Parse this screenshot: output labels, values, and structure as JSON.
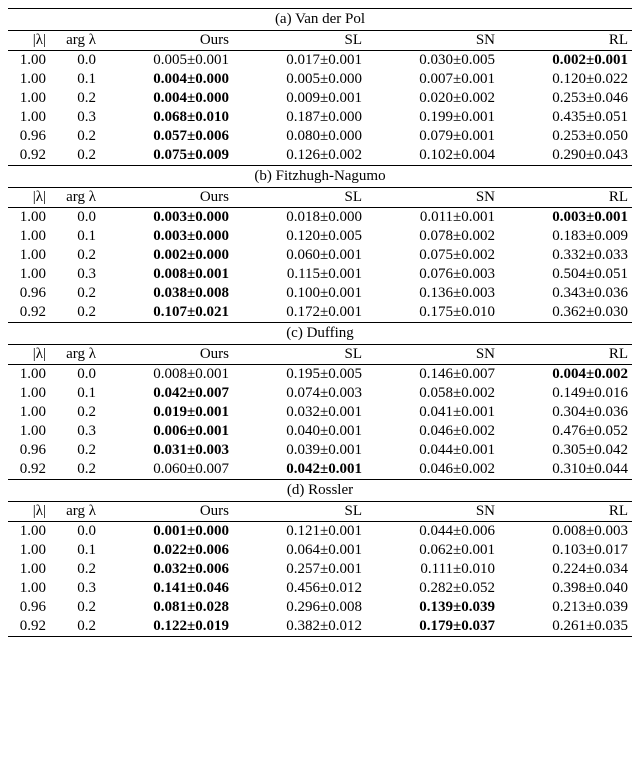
{
  "columns": [
    "|λ|",
    "arg λ",
    "Ours",
    "SL",
    "SN",
    "RL"
  ],
  "panels": [
    {
      "title": "(a) Van der Pol",
      "rows": [
        {
          "abs": "1.00",
          "arg": "0.0",
          "ours": {
            "v": "0.005",
            "e": "0.001",
            "b": false
          },
          "sl": {
            "v": "0.017",
            "e": "0.001",
            "b": false
          },
          "sn": {
            "v": "0.030",
            "e": "0.005",
            "b": false
          },
          "rl": {
            "v": "0.002",
            "e": "0.001",
            "b": true
          }
        },
        {
          "abs": "1.00",
          "arg": "0.1",
          "ours": {
            "v": "0.004",
            "e": "0.000",
            "b": true
          },
          "sl": {
            "v": "0.005",
            "e": "0.000",
            "b": false
          },
          "sn": {
            "v": "0.007",
            "e": "0.001",
            "b": false
          },
          "rl": {
            "v": "0.120",
            "e": "0.022",
            "b": false
          }
        },
        {
          "abs": "1.00",
          "arg": "0.2",
          "ours": {
            "v": "0.004",
            "e": "0.000",
            "b": true
          },
          "sl": {
            "v": "0.009",
            "e": "0.001",
            "b": false
          },
          "sn": {
            "v": "0.020",
            "e": "0.002",
            "b": false
          },
          "rl": {
            "v": "0.253",
            "e": "0.046",
            "b": false
          }
        },
        {
          "abs": "1.00",
          "arg": "0.3",
          "ours": {
            "v": "0.068",
            "e": "0.010",
            "b": true
          },
          "sl": {
            "v": "0.187",
            "e": "0.000",
            "b": false
          },
          "sn": {
            "v": "0.199",
            "e": "0.001",
            "b": false
          },
          "rl": {
            "v": "0.435",
            "e": "0.051",
            "b": false
          }
        },
        {
          "abs": "0.96",
          "arg": "0.2",
          "ours": {
            "v": "0.057",
            "e": "0.006",
            "b": true
          },
          "sl": {
            "v": "0.080",
            "e": "0.000",
            "b": false
          },
          "sn": {
            "v": "0.079",
            "e": "0.001",
            "b": false
          },
          "rl": {
            "v": "0.253",
            "e": "0.050",
            "b": false
          }
        },
        {
          "abs": "0.92",
          "arg": "0.2",
          "ours": {
            "v": "0.075",
            "e": "0.009",
            "b": true
          },
          "sl": {
            "v": "0.126",
            "e": "0.002",
            "b": false
          },
          "sn": {
            "v": "0.102",
            "e": "0.004",
            "b": false
          },
          "rl": {
            "v": "0.290",
            "e": "0.043",
            "b": false
          }
        }
      ]
    },
    {
      "title": "(b) Fitzhugh-Nagumo",
      "rows": [
        {
          "abs": "1.00",
          "arg": "0.0",
          "ours": {
            "v": "0.003",
            "e": "0.000",
            "b": true
          },
          "sl": {
            "v": "0.018",
            "e": "0.000",
            "b": false
          },
          "sn": {
            "v": "0.011",
            "e": "0.001",
            "b": false
          },
          "rl": {
            "v": "0.003",
            "e": "0.001",
            "b": true
          }
        },
        {
          "abs": "1.00",
          "arg": "0.1",
          "ours": {
            "v": "0.003",
            "e": "0.000",
            "b": true
          },
          "sl": {
            "v": "0.120",
            "e": "0.005",
            "b": false
          },
          "sn": {
            "v": "0.078",
            "e": "0.002",
            "b": false
          },
          "rl": {
            "v": "0.183",
            "e": "0.009",
            "b": false
          }
        },
        {
          "abs": "1.00",
          "arg": "0.2",
          "ours": {
            "v": "0.002",
            "e": "0.000",
            "b": true
          },
          "sl": {
            "v": "0.060",
            "e": "0.001",
            "b": false
          },
          "sn": {
            "v": "0.075",
            "e": "0.002",
            "b": false
          },
          "rl": {
            "v": "0.332",
            "e": "0.033",
            "b": false
          }
        },
        {
          "abs": "1.00",
          "arg": "0.3",
          "ours": {
            "v": "0.008",
            "e": "0.001",
            "b": true
          },
          "sl": {
            "v": "0.115",
            "e": "0.001",
            "b": false
          },
          "sn": {
            "v": "0.076",
            "e": "0.003",
            "b": false
          },
          "rl": {
            "v": "0.504",
            "e": "0.051",
            "b": false
          }
        },
        {
          "abs": "0.96",
          "arg": "0.2",
          "ours": {
            "v": "0.038",
            "e": "0.008",
            "b": true
          },
          "sl": {
            "v": "0.100",
            "e": "0.001",
            "b": false
          },
          "sn": {
            "v": "0.136",
            "e": "0.003",
            "b": false
          },
          "rl": {
            "v": "0.343",
            "e": "0.036",
            "b": false
          }
        },
        {
          "abs": "0.92",
          "arg": "0.2",
          "ours": {
            "v": "0.107",
            "e": "0.021",
            "b": true
          },
          "sl": {
            "v": "0.172",
            "e": "0.001",
            "b": false
          },
          "sn": {
            "v": "0.175",
            "e": "0.010",
            "b": false
          },
          "rl": {
            "v": "0.362",
            "e": "0.030",
            "b": false
          }
        }
      ]
    },
    {
      "title": "(c) Duffing",
      "rows": [
        {
          "abs": "1.00",
          "arg": "0.0",
          "ours": {
            "v": "0.008",
            "e": "0.001",
            "b": false
          },
          "sl": {
            "v": "0.195",
            "e": "0.005",
            "b": false
          },
          "sn": {
            "v": "0.146",
            "e": "0.007",
            "b": false
          },
          "rl": {
            "v": "0.004",
            "e": "0.002",
            "b": true
          }
        },
        {
          "abs": "1.00",
          "arg": "0.1",
          "ours": {
            "v": "0.042",
            "e": "0.007",
            "b": true
          },
          "sl": {
            "v": "0.074",
            "e": "0.003",
            "b": false
          },
          "sn": {
            "v": "0.058",
            "e": "0.002",
            "b": false
          },
          "rl": {
            "v": "0.149",
            "e": "0.016",
            "b": false
          }
        },
        {
          "abs": "1.00",
          "arg": "0.2",
          "ours": {
            "v": "0.019",
            "e": "0.001",
            "b": true
          },
          "sl": {
            "v": "0.032",
            "e": "0.001",
            "b": false
          },
          "sn": {
            "v": "0.041",
            "e": "0.001",
            "b": false
          },
          "rl": {
            "v": "0.304",
            "e": "0.036",
            "b": false
          }
        },
        {
          "abs": "1.00",
          "arg": "0.3",
          "ours": {
            "v": "0.006",
            "e": "0.001",
            "b": true
          },
          "sl": {
            "v": "0.040",
            "e": "0.001",
            "b": false
          },
          "sn": {
            "v": "0.046",
            "e": "0.002",
            "b": false
          },
          "rl": {
            "v": "0.476",
            "e": "0.052",
            "b": false
          }
        },
        {
          "abs": "0.96",
          "arg": "0.2",
          "ours": {
            "v": "0.031",
            "e": "0.003",
            "b": true
          },
          "sl": {
            "v": "0.039",
            "e": "0.001",
            "b": false
          },
          "sn": {
            "v": "0.044",
            "e": "0.001",
            "b": false
          },
          "rl": {
            "v": "0.305",
            "e": "0.042",
            "b": false
          }
        },
        {
          "abs": "0.92",
          "arg": "0.2",
          "ours": {
            "v": "0.060",
            "e": "0.007",
            "b": false
          },
          "sl": {
            "v": "0.042",
            "e": "0.001",
            "b": true
          },
          "sn": {
            "v": "0.046",
            "e": "0.002",
            "b": false
          },
          "rl": {
            "v": "0.310",
            "e": "0.044",
            "b": false
          }
        }
      ]
    },
    {
      "title": "(d) Rossler",
      "rows": [
        {
          "abs": "1.00",
          "arg": "0.0",
          "ours": {
            "v": "0.001",
            "e": "0.000",
            "b": true
          },
          "sl": {
            "v": "0.121",
            "e": "0.001",
            "b": false
          },
          "sn": {
            "v": "0.044",
            "e": "0.006",
            "b": false
          },
          "rl": {
            "v": "0.008",
            "e": "0.003",
            "b": false
          }
        },
        {
          "abs": "1.00",
          "arg": "0.1",
          "ours": {
            "v": "0.022",
            "e": "0.006",
            "b": true
          },
          "sl": {
            "v": "0.064",
            "e": "0.001",
            "b": false
          },
          "sn": {
            "v": "0.062",
            "e": "0.001",
            "b": false
          },
          "rl": {
            "v": "0.103",
            "e": "0.017",
            "b": false
          }
        },
        {
          "abs": "1.00",
          "arg": "0.2",
          "ours": {
            "v": "0.032",
            "e": "0.006",
            "b": true
          },
          "sl": {
            "v": "0.257",
            "e": "0.001",
            "b": false
          },
          "sn": {
            "v": "0.111",
            "e": "0.010",
            "b": false
          },
          "rl": {
            "v": "0.224",
            "e": "0.034",
            "b": false
          }
        },
        {
          "abs": "1.00",
          "arg": "0.3",
          "ours": {
            "v": "0.141",
            "e": "0.046",
            "b": true
          },
          "sl": {
            "v": "0.456",
            "e": "0.012",
            "b": false
          },
          "sn": {
            "v": "0.282",
            "e": "0.052",
            "b": false
          },
          "rl": {
            "v": "0.398",
            "e": "0.040",
            "b": false
          }
        },
        {
          "abs": "0.96",
          "arg": "0.2",
          "ours": {
            "v": "0.081",
            "e": "0.028",
            "b": true
          },
          "sl": {
            "v": "0.296",
            "e": "0.008",
            "b": false
          },
          "sn": {
            "v": "0.139",
            "e": "0.039",
            "b": true
          },
          "rl": {
            "v": "0.213",
            "e": "0.039",
            "b": false
          }
        },
        {
          "abs": "0.92",
          "arg": "0.2",
          "ours": {
            "v": "0.122",
            "e": "0.019",
            "b": true
          },
          "sl": {
            "v": "0.382",
            "e": "0.012",
            "b": false
          },
          "sn": {
            "v": "0.179",
            "e": "0.037",
            "b": true
          },
          "rl": {
            "v": "0.261",
            "e": "0.035",
            "b": false
          }
        }
      ]
    }
  ]
}
